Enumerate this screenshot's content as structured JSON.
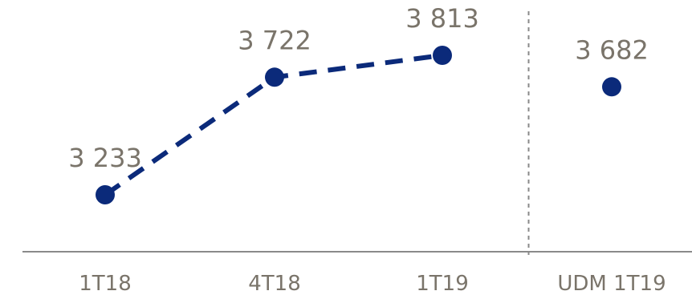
{
  "chart_data": {
    "type": "line",
    "categories": [
      "1T18",
      "4T18",
      "1T19",
      "UDM 1T19"
    ],
    "values": [
      3233,
      3722,
      3813,
      3682
    ],
    "data_labels": [
      "3 233",
      "3 722",
      "3 813",
      "3 682"
    ],
    "connected_points": 3,
    "separator_before_category": 3,
    "ylim": [
      3000,
      4000
    ],
    "grid": false,
    "colors": {
      "series": "#0b2a7a",
      "text": "#7a746a",
      "axis": "#8a8a8a"
    }
  }
}
